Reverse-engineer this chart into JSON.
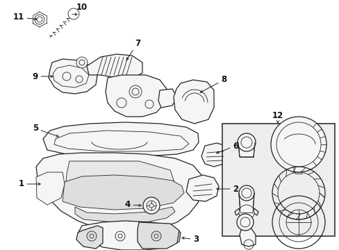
{
  "bg_color": "#ffffff",
  "fig_width": 4.89,
  "fig_height": 3.6,
  "dpi": 100,
  "line_color": "#222222",
  "fill_color": "#f5f5f5",
  "box_fill": "#ececec",
  "label_color": "#111111",
  "font_size": 8.5
}
